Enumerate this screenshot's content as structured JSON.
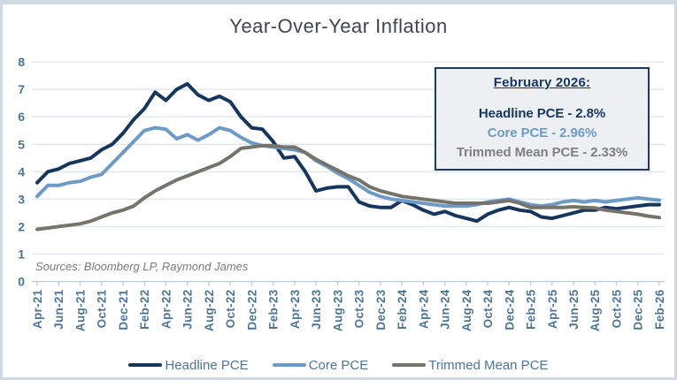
{
  "window": {
    "background": "#ffffff",
    "frame_border_color": "#cdd9e3"
  },
  "chart_data": {
    "type": "line",
    "title": "Year-Over-Year Inflation",
    "source_note": "Sources: Bloomberg LP, Raymond James",
    "ylim": [
      0,
      8
    ],
    "y_ticks": [
      0,
      1,
      2,
      3,
      4,
      5,
      6,
      7,
      8
    ],
    "grid": true,
    "legend_position": "bottom",
    "x_tick_labels": [
      "Apr-21",
      "Jun-21",
      "Aug-21",
      "Oct-21",
      "Dec-21",
      "Feb-22",
      "Apr-22",
      "Jun-22",
      "Aug-22",
      "Oct-22",
      "Dec-22",
      "Feb-23",
      "Apr-23",
      "Jun-23",
      "Aug-23",
      "Oct-23",
      "Dec-23",
      "Feb-24",
      "Apr-24",
      "Jun-24",
      "Aug-24",
      "Oct-24",
      "Dec-24",
      "Feb-25",
      "Apr-25",
      "Jun-25",
      "Aug-25",
      "Oct-25",
      "Dec-25",
      "Feb-26"
    ],
    "months": [
      "Apr-21",
      "May-21",
      "Jun-21",
      "Jul-21",
      "Aug-21",
      "Sep-21",
      "Oct-21",
      "Nov-21",
      "Dec-21",
      "Jan-22",
      "Feb-22",
      "Mar-22",
      "Apr-22",
      "May-22",
      "Jun-22",
      "Jul-22",
      "Aug-22",
      "Sep-22",
      "Oct-22",
      "Nov-22",
      "Dec-22",
      "Jan-23",
      "Feb-23",
      "Mar-23",
      "Apr-23",
      "May-23",
      "Jun-23",
      "Jul-23",
      "Aug-23",
      "Sep-23",
      "Oct-23",
      "Nov-23",
      "Dec-23",
      "Jan-24",
      "Feb-24",
      "Mar-24",
      "Apr-24",
      "May-24",
      "Jun-24",
      "Jul-24",
      "Aug-24",
      "Sep-24",
      "Oct-24",
      "Nov-24",
      "Dec-24",
      "Jan-25",
      "Feb-25",
      "Mar-25",
      "Apr-25",
      "May-25",
      "Jun-25",
      "Jul-25",
      "Aug-25",
      "Sep-25",
      "Oct-25",
      "Nov-25",
      "Dec-25",
      "Jan-26",
      "Feb-26"
    ],
    "series": [
      {
        "name": "Headline PCE",
        "color": "#17365d",
        "values": [
          3.6,
          4.0,
          4.1,
          4.3,
          4.4,
          4.5,
          4.8,
          5.0,
          5.4,
          5.9,
          6.3,
          6.9,
          6.6,
          7.0,
          7.2,
          6.8,
          6.6,
          6.75,
          6.55,
          6.0,
          5.6,
          5.55,
          5.1,
          4.5,
          4.55,
          4.0,
          3.3,
          3.4,
          3.45,
          3.45,
          2.9,
          2.75,
          2.7,
          2.7,
          2.95,
          2.8,
          2.6,
          2.45,
          2.55,
          2.4,
          2.3,
          2.2,
          2.45,
          2.6,
          2.7,
          2.6,
          2.55,
          2.35,
          2.3,
          2.4,
          2.5,
          2.6,
          2.6,
          2.7,
          2.65,
          2.7,
          2.75,
          2.8,
          2.8
        ]
      },
      {
        "name": "Core PCE",
        "color": "#6d9ac6",
        "values": [
          3.1,
          3.5,
          3.5,
          3.6,
          3.65,
          3.8,
          3.9,
          4.3,
          4.7,
          5.1,
          5.5,
          5.6,
          5.55,
          5.2,
          5.35,
          5.15,
          5.35,
          5.6,
          5.5,
          5.25,
          5.05,
          4.95,
          4.9,
          4.85,
          4.8,
          4.7,
          4.4,
          4.2,
          3.95,
          3.75,
          3.5,
          3.25,
          3.1,
          3.0,
          2.95,
          2.9,
          2.85,
          2.8,
          2.75,
          2.75,
          2.75,
          2.8,
          2.9,
          2.95,
          3.0,
          2.9,
          2.8,
          2.75,
          2.8,
          2.9,
          2.95,
          2.9,
          2.95,
          2.9,
          2.95,
          3.0,
          3.05,
          3.0,
          2.96
        ]
      },
      {
        "name": "Trimmed Mean PCE",
        "color": "#76746a",
        "values": [
          1.9,
          1.95,
          2.0,
          2.05,
          2.1,
          2.2,
          2.35,
          2.5,
          2.6,
          2.75,
          3.05,
          3.3,
          3.5,
          3.7,
          3.85,
          4.0,
          4.15,
          4.3,
          4.55,
          4.85,
          4.9,
          4.95,
          4.95,
          4.9,
          4.9,
          4.7,
          4.45,
          4.25,
          4.05,
          3.85,
          3.7,
          3.45,
          3.3,
          3.2,
          3.1,
          3.05,
          3.0,
          2.95,
          2.9,
          2.85,
          2.85,
          2.85,
          2.85,
          2.9,
          2.95,
          2.85,
          2.7,
          2.7,
          2.7,
          2.7,
          2.72,
          2.7,
          2.68,
          2.6,
          2.55,
          2.5,
          2.45,
          2.38,
          2.33
        ]
      }
    ],
    "colors": {
      "grid": "#dfe7ef",
      "axis_line": "#b9cbdb",
      "axis_text": "#4d7596",
      "title_text": "#3d474f"
    }
  },
  "annotation": {
    "heading": "February 2026:",
    "lines": [
      {
        "text": "Headline PCE - 2.8%",
        "color": "#17365d"
      },
      {
        "text": "Core PCE - 2.96%",
        "color": "#6d9ac6"
      },
      {
        "text": "Trimmed Mean PCE - 2.33%",
        "color": "#7f7f7f"
      }
    ],
    "background": "#edf0f3",
    "border_color": "#1f3a5f"
  }
}
